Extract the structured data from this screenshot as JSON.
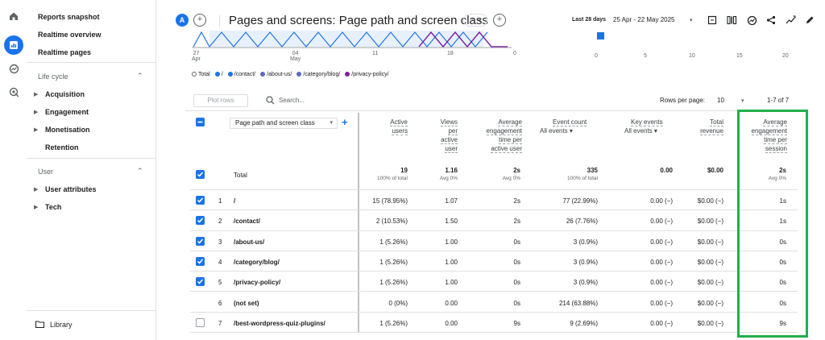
{
  "sidebar": {
    "items_top": [
      "Reports snapshot",
      "Realtime overview",
      "Realtime pages"
    ],
    "section_lifecycle": "Life cycle",
    "lifecycle_items": [
      "Acquisition",
      "Engagement",
      "Monetisation"
    ],
    "retention": "Retention",
    "section_user": "User",
    "user_items": [
      "User attributes",
      "Tech"
    ],
    "library": "Library"
  },
  "header": {
    "avatar_letter": "A",
    "title": "Pages and screens: Page path and screen class",
    "date_label": "Last 28 days",
    "date_range": "25 Apr - 22 May 2025"
  },
  "chart": {
    "x_labels_left": [
      {
        "top": "27",
        "bottom": "Apr"
      },
      {
        "top": "04",
        "bottom": "May"
      },
      {
        "top": "11",
        "bottom": ""
      },
      {
        "top": "18",
        "bottom": ""
      }
    ],
    "x_label_zero_left": "0",
    "x_labels_right": [
      "0",
      "5",
      "10",
      "15",
      "20"
    ],
    "legend": [
      "Total",
      "/",
      "/contact/",
      "/about-us/",
      "/category/blog/",
      "/privacy-policy/"
    ]
  },
  "toolbar": {
    "plot_rows": "Plot rows",
    "search_placeholder": "Search...",
    "rows_per_page_label": "Rows per page:",
    "rows_per_page": "10",
    "range": "1-7 of 7"
  },
  "table": {
    "dimension": "Page path and screen class",
    "headers": {
      "active_users": [
        "Active",
        "users"
      ],
      "views": [
        "Views",
        "per",
        "active",
        "user"
      ],
      "avg_time_user": [
        "Average",
        "engagement",
        "time per",
        "active user"
      ],
      "event_count": [
        "Event count",
        "All events"
      ],
      "key_events": [
        "Key events",
        "All events"
      ],
      "total_revenue": [
        "Total",
        "revenue"
      ],
      "avg_time_session": [
        "Average",
        "engagement",
        "time per",
        "session"
      ]
    },
    "total": {
      "label": "Total",
      "active_users": "19",
      "active_users_sub": "100% of total",
      "views": "1.16",
      "views_sub": "Avg 0%",
      "avg_time_user": "2s",
      "avg_time_user_sub": "Avg 0%",
      "event_count": "335",
      "event_count_sub": "100% of total",
      "key_events": "0.00",
      "total_revenue": "$0.00",
      "avg_time_session": "2s",
      "avg_time_session_sub": "Avg 0%"
    },
    "rows": [
      {
        "n": "1",
        "path": "/",
        "users": "15 (78.95%)",
        "views": "1.07",
        "avg_user": "2s",
        "events": "77 (22.99%)",
        "key": "0.00 (−)",
        "rev": "$0.00 (−)",
        "avg_session": "1s",
        "checked": true
      },
      {
        "n": "2",
        "path": "/contact/",
        "users": "2 (10.53%)",
        "views": "1.50",
        "avg_user": "2s",
        "events": "26 (7.76%)",
        "key": "0.00 (−)",
        "rev": "$0.00 (−)",
        "avg_session": "1s",
        "checked": true
      },
      {
        "n": "3",
        "path": "/about-us/",
        "users": "1 (5.26%)",
        "views": "1.00",
        "avg_user": "0s",
        "events": "3 (0.9%)",
        "key": "0.00 (−)",
        "rev": "$0.00 (−)",
        "avg_session": "0s",
        "checked": true
      },
      {
        "n": "4",
        "path": "/category/blog/",
        "users": "1 (5.26%)",
        "views": "1.00",
        "avg_user": "0s",
        "events": "3 (0.9%)",
        "key": "0.00 (−)",
        "rev": "$0.00 (−)",
        "avg_session": "0s",
        "checked": true
      },
      {
        "n": "5",
        "path": "/privacy-policy/",
        "users": "1 (5.26%)",
        "views": "1.00",
        "avg_user": "0s",
        "events": "3 (0.9%)",
        "key": "0.00 (−)",
        "rev": "$0.00 (−)",
        "avg_session": "0s",
        "checked": true
      },
      {
        "n": "6",
        "path": "(not set)",
        "users": "0 (0%)",
        "views": "0.00",
        "avg_user": "0s",
        "events": "214 (63.88%)",
        "key": "0.00 (−)",
        "rev": "$0.00 (−)",
        "avg_session": "0s",
        "checked": null
      },
      {
        "n": "7",
        "path": "/best-wordpress-quiz-plugins/",
        "users": "1 (5.26%)",
        "views": "0.00",
        "avg_user": "9s",
        "events": "9 (2.69%)",
        "key": "0.00 (−)",
        "rev": "$0.00 (−)",
        "avg_session": "9s",
        "checked": false
      }
    ]
  },
  "colors": {
    "accent": "#1a73e8",
    "highlight": "#21b04b",
    "series_purple": "#7b1fa2"
  }
}
